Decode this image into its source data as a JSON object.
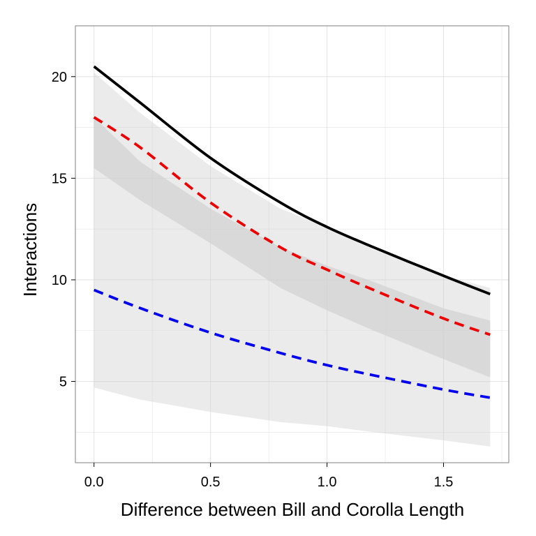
{
  "chart_data": {
    "type": "line",
    "title": "",
    "xlabel": "Difference between Bill and Corolla Length",
    "ylabel": "Interactions",
    "xlim": [
      -0.08,
      1.78
    ],
    "ylim": [
      1.0,
      22.5
    ],
    "x_ticks": [
      0.0,
      0.5,
      1.0,
      1.5
    ],
    "x_tick_labels": [
      "0.0",
      "0.5",
      "1.0",
      "1.5"
    ],
    "y_ticks": [
      5,
      10,
      15,
      20
    ],
    "y_tick_labels": [
      "5",
      "10",
      "15",
      "20"
    ],
    "grid": true,
    "legend": "none",
    "x": [
      0.0,
      0.2,
      0.5,
      0.8,
      1.0,
      1.2,
      1.5,
      1.7
    ],
    "series": [
      {
        "color": "#000000",
        "dash": "solid",
        "values": [
          20.5,
          18.7,
          16.0,
          13.8,
          12.6,
          11.6,
          10.2,
          9.3
        ],
        "band": {
          "color": "#ebebeb",
          "lower": [
            4.7,
            4.1,
            3.5,
            3.0,
            2.8,
            2.5,
            2.1,
            1.8
          ],
          "upper": [
            20.2,
            18.2,
            15.6,
            13.5,
            12.6,
            11.5,
            10.2,
            9.6
          ]
        }
      },
      {
        "color": "#ee0000",
        "dash": "dashed",
        "values": [
          18.0,
          16.5,
          13.8,
          11.6,
          10.5,
          9.5,
          8.1,
          7.3
        ],
        "band": {
          "color": "#d9d9d9",
          "lower": [
            15.5,
            13.9,
            11.8,
            9.6,
            8.5,
            7.5,
            6.1,
            5.2
          ],
          "upper": [
            18.0,
            15.8,
            13.5,
            11.6,
            10.7,
            9.9,
            8.6,
            8.0
          ]
        }
      },
      {
        "color": "#0000ee",
        "dash": "dashed",
        "values": [
          9.5,
          8.6,
          7.4,
          6.4,
          5.8,
          5.3,
          4.6,
          4.2
        ]
      }
    ]
  }
}
